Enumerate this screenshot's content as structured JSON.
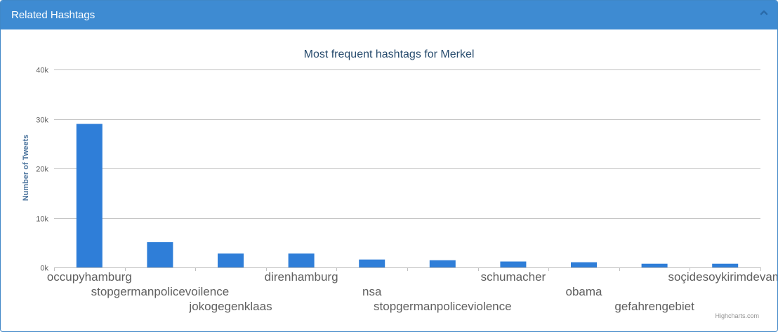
{
  "panel": {
    "title": "Related Hashtags",
    "collapse_icon": "chevron-up-icon"
  },
  "colors": {
    "header": "#3e8bd2",
    "bar": "#2f7ed8",
    "title": "#274b6d",
    "axis_title": "#4d759e",
    "grid": "#c0c0c0"
  },
  "credits": "Highcharts.com",
  "chart_data": {
    "type": "bar",
    "title": "Most frequent hashtags for Merkel",
    "xlabel": "",
    "ylabel": "Number of Tweets",
    "ylim": [
      0,
      40000
    ],
    "yticks": [
      0,
      10000,
      20000,
      30000,
      40000
    ],
    "ytick_labels": [
      "0k",
      "10k",
      "20k",
      "30k",
      "40k"
    ],
    "grid": true,
    "legend": "none",
    "categories": [
      "occupyhamburg",
      "stopgermanpolicevoilence",
      "jokogegenklaas",
      "direnhamburg",
      "nsa",
      "stopgermanpoliceviolence",
      "schumacher",
      "obama",
      "gefahrengebiet",
      "soçidesoykirimdevam"
    ],
    "values": [
      29000,
      5100,
      2800,
      2800,
      1600,
      1450,
      1200,
      1050,
      750,
      750
    ]
  }
}
